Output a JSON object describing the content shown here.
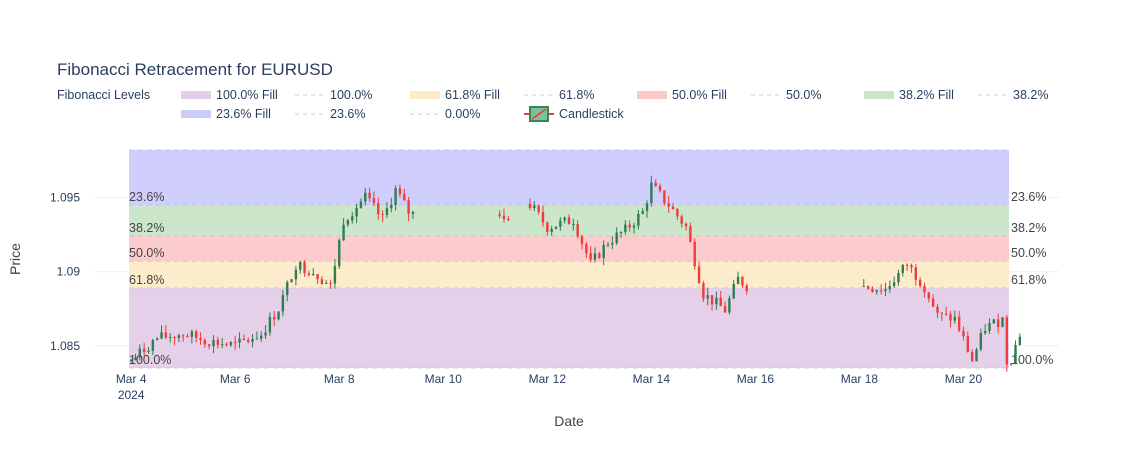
{
  "chart_data": {
    "type": "candlestick",
    "title": "Fibonacci Retracement for EURUSD",
    "xlabel": "Date",
    "ylabel": "Price",
    "x_ticks": [
      {
        "date": "2024-03-04",
        "label": "Mar 4",
        "sublabel": "2024"
      },
      {
        "date": "2024-03-06",
        "label": "Mar 6"
      },
      {
        "date": "2024-03-08",
        "label": "Mar 8"
      },
      {
        "date": "2024-03-10",
        "label": "Mar 10"
      },
      {
        "date": "2024-03-12",
        "label": "Mar 12"
      },
      {
        "date": "2024-03-14",
        "label": "Mar 14"
      },
      {
        "date": "2024-03-16",
        "label": "Mar 16"
      },
      {
        "date": "2024-03-18",
        "label": "Mar 18"
      },
      {
        "date": "2024-03-20",
        "label": "Mar 20"
      }
    ],
    "y_ticks": [
      {
        "value": 1.085,
        "label": "1.085"
      },
      {
        "value": 1.09,
        "label": "1.09"
      },
      {
        "value": 1.095,
        "label": "1.095"
      }
    ],
    "ylim": [
      1.0835,
      1.0982
    ],
    "xlim": [
      "2024-03-03T23:00",
      "2024-03-20T21:00"
    ],
    "grid": true,
    "legend": {
      "title": "Fibonacci Levels",
      "position": "top",
      "items": [
        {
          "label": "100.0% Fill",
          "kind": "fill",
          "color": "#e4cde8"
        },
        {
          "label": "100.0%",
          "kind": "line",
          "color": "#cccccc"
        },
        {
          "label": "61.8% Fill",
          "kind": "fill",
          "color": "#fdebc8"
        },
        {
          "label": "61.8%",
          "kind": "line",
          "color": "#cccccc"
        },
        {
          "label": "50.0% Fill",
          "kind": "fill",
          "color": "#fcc9c9"
        },
        {
          "label": "50.0%",
          "kind": "line",
          "color": "#cccccc"
        },
        {
          "label": "38.2% Fill",
          "kind": "fill",
          "color": "#c9e5c9"
        },
        {
          "label": "38.2%",
          "kind": "line",
          "color": "#cccccc"
        },
        {
          "label": "23.6% Fill",
          "kind": "fill",
          "color": "#cccbfd"
        },
        {
          "label": "23.6%",
          "kind": "line",
          "color": "#cccccc"
        },
        {
          "label": "0.00%",
          "kind": "line",
          "color": "#cccccc"
        },
        {
          "label": "Candlestick",
          "kind": "candle",
          "color": "#2e8b57"
        }
      ]
    },
    "fib_levels": [
      {
        "label": "100.0%",
        "value": 1.0835
      },
      {
        "label": "61.8%",
        "value": 1.0889
      },
      {
        "label": "50.0%",
        "value": 1.0907
      },
      {
        "label": "38.2%",
        "value": 1.0924
      },
      {
        "label": "23.6%",
        "value": 1.0945
      },
      {
        "label": "0.00%",
        "value": 1.0982
      }
    ],
    "fill_bands": [
      {
        "name": "100.0% Fill",
        "from": 1.0835,
        "to": 1.0889,
        "color": "#e4cde8"
      },
      {
        "name": "61.8% Fill",
        "from": 1.0889,
        "to": 1.0907,
        "color": "#fdebc8"
      },
      {
        "name": "50.0% Fill",
        "from": 1.0907,
        "to": 1.0924,
        "color": "#fcc9c9"
      },
      {
        "name": "38.2% Fill",
        "from": 1.0924,
        "to": 1.0945,
        "color": "#c9e5c9"
      },
      {
        "name": "23.6% Fill",
        "from": 1.0945,
        "to": 1.0982,
        "color": "#cccbfd"
      }
    ],
    "colors": {
      "increasing": "#2e7d52",
      "decreasing": "#ef3b3b"
    },
    "price_path": [
      [
        "2024-03-04T00:00",
        1.084
      ],
      [
        "2024-03-04T12:00",
        1.0855
      ],
      [
        "2024-03-05T00:00",
        1.0858
      ],
      [
        "2024-03-05T12:00",
        1.0853
      ],
      [
        "2024-03-06T00:00",
        1.085
      ],
      [
        "2024-03-06T12:00",
        1.0858
      ],
      [
        "2024-03-06T20:00",
        1.0875
      ],
      [
        "2024-03-07T04:00",
        1.0905
      ],
      [
        "2024-03-07T12:00",
        1.09
      ],
      [
        "2024-03-07T20:00",
        1.089
      ],
      [
        "2024-03-08T02:00",
        1.0935
      ],
      [
        "2024-03-08T12:00",
        1.095
      ],
      [
        "2024-03-08T20:00",
        1.0935
      ],
      [
        "2024-03-09T02:00",
        1.0955
      ],
      [
        "2024-03-09T08:00",
        1.094
      ],
      [
        "2024-03-09T12:00",
        1.0938
      ],
      [
        "2024-03-09T14:00",
        null
      ],
      [
        "2024-03-11T00:00",
        null
      ],
      [
        "2024-03-11T02:00",
        1.094
      ],
      [
        "2024-03-11T08:00",
        1.0938
      ],
      [
        "2024-03-11T10:00",
        null
      ],
      [
        "2024-03-11T14:00",
        null
      ],
      [
        "2024-03-11T16:00",
        1.0945
      ],
      [
        "2024-03-12T00:00",
        1.093
      ],
      [
        "2024-03-12T12:00",
        1.0935
      ],
      [
        "2024-03-12T20:00",
        1.0905
      ],
      [
        "2024-03-13T04:00",
        1.092
      ],
      [
        "2024-03-13T12:00",
        1.0928
      ],
      [
        "2024-03-13T20:00",
        1.094
      ],
      [
        "2024-03-14T00:00",
        1.0958
      ],
      [
        "2024-03-14T08:00",
        1.0945
      ],
      [
        "2024-03-14T16:00",
        1.093
      ],
      [
        "2024-03-15T00:00",
        1.0885
      ],
      [
        "2024-03-15T10:00",
        1.0874
      ],
      [
        "2024-03-15T16:00",
        1.0895
      ],
      [
        "2024-03-15T22:00",
        1.0888
      ],
      [
        "2024-03-16T00:00",
        null
      ],
      [
        "2024-03-18T00:00",
        null
      ],
      [
        "2024-03-18T02:00",
        1.089
      ],
      [
        "2024-03-18T12:00",
        1.0888
      ],
      [
        "2024-03-18T22:00",
        1.0905
      ],
      [
        "2024-03-19T06:00",
        1.089
      ],
      [
        "2024-03-19T12:00",
        1.087
      ],
      [
        "2024-03-19T20:00",
        1.0868
      ],
      [
        "2024-03-20T04:00",
        1.084
      ],
      [
        "2024-03-20T10:00",
        1.0862
      ],
      [
        "2024-03-20T18:00",
        1.0868
      ],
      [
        "2024-03-20T20:00",
        1.084
      ],
      [
        "2024-03-20T22:00",
        1.0842
      ],
      [
        "2024-03-21T02:00",
        1.0858
      ],
      [
        "2024-03-21T04:00",
        1.0915
      ]
    ]
  }
}
